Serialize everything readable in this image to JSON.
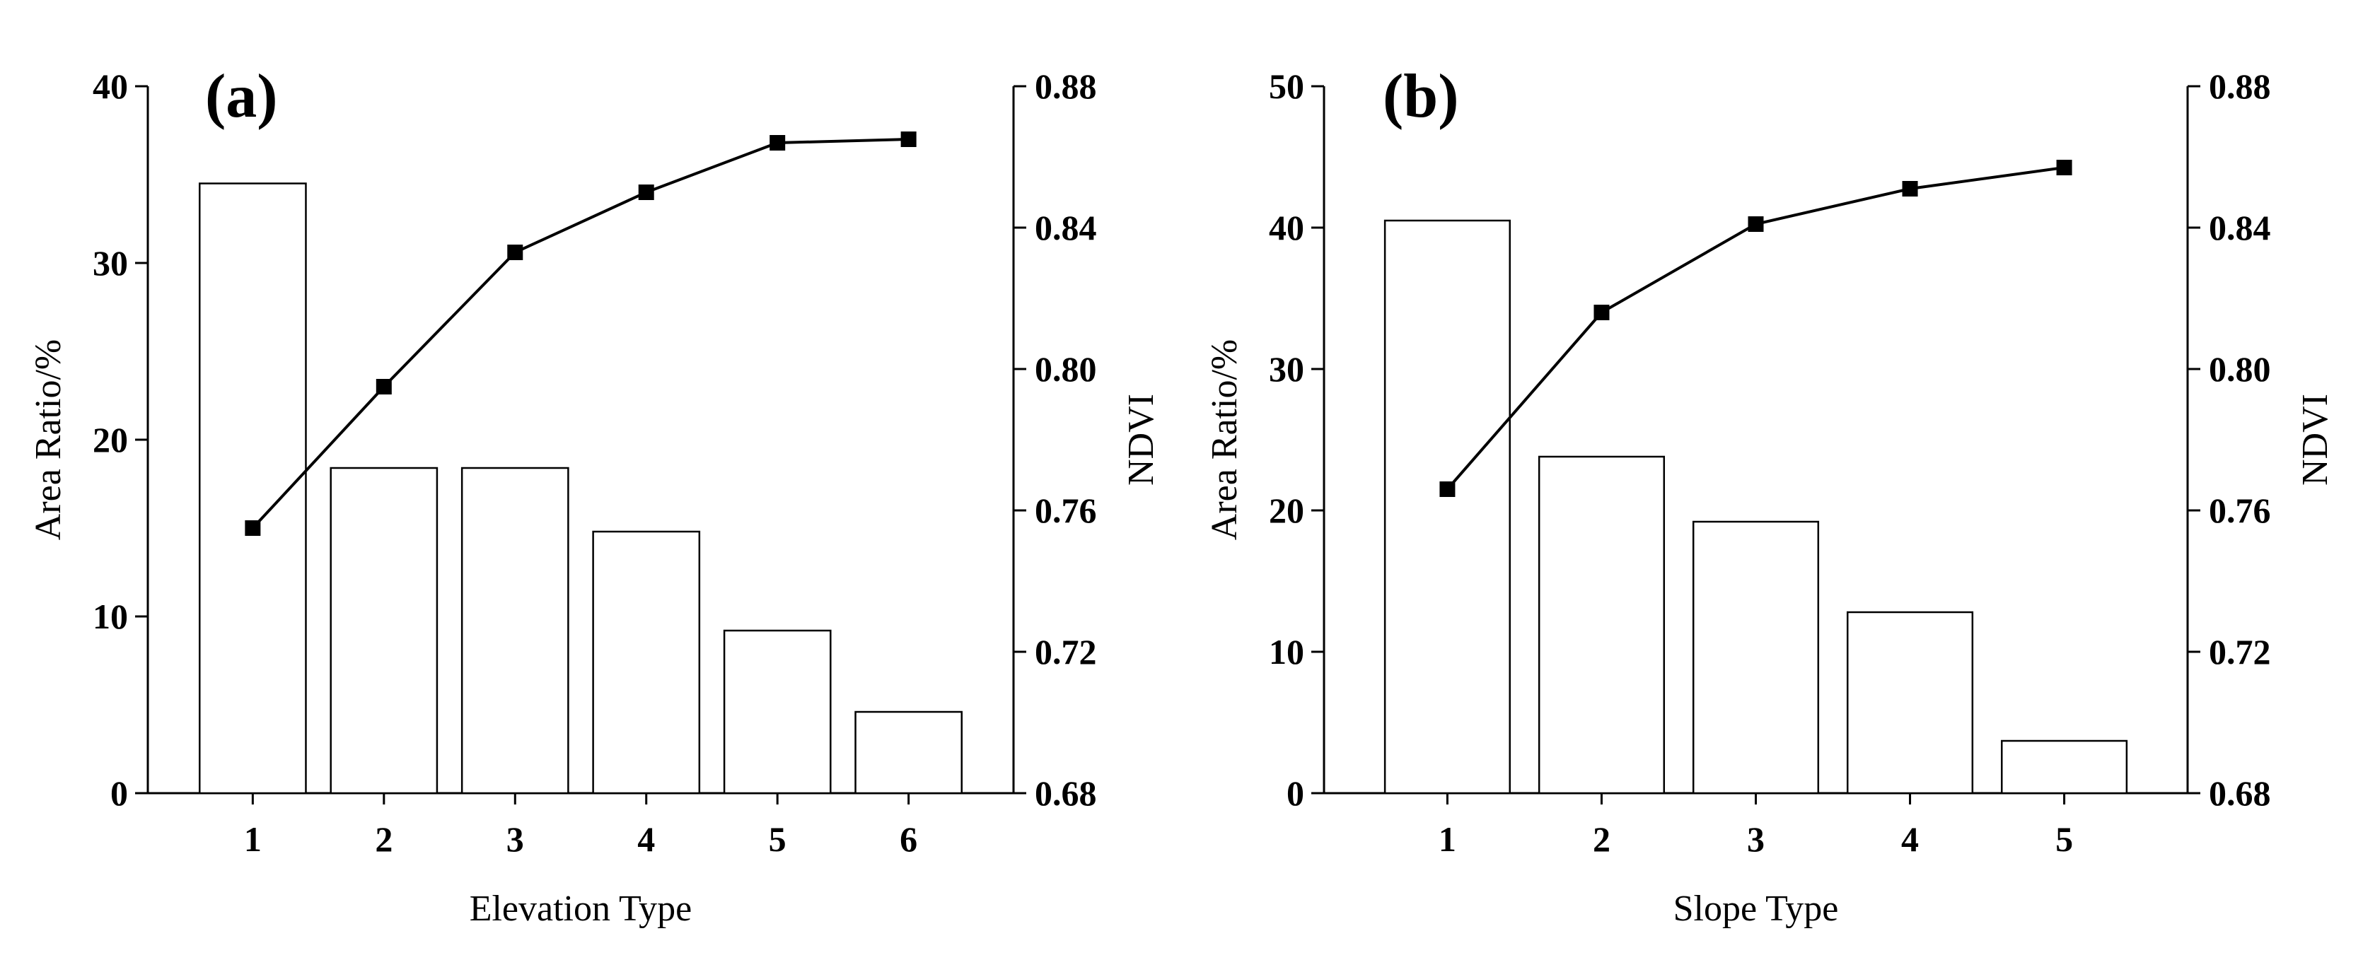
{
  "chart_data": [
    {
      "panel_label": "(a)",
      "type": "bar+line",
      "xlabel": "Elevation Type",
      "ylabel": "Area Ratio/%",
      "y2label": "NDVI",
      "categories": [
        "1",
        "2",
        "3",
        "4",
        "5",
        "6"
      ],
      "ylim": [
        0,
        40
      ],
      "yticks": [
        "0",
        "10",
        "20",
        "30",
        "40"
      ],
      "y2lim": [
        0.68,
        0.88
      ],
      "y2ticks": [
        "0.68",
        "0.72",
        "0.76",
        "0.80",
        "0.84",
        "0.88"
      ],
      "series": [
        {
          "name": "Area Ratio",
          "type": "bar",
          "axis": "left",
          "values": [
            34.5,
            18.4,
            18.4,
            14.8,
            9.2,
            4.6
          ]
        },
        {
          "name": "NDVI",
          "type": "line",
          "axis": "right",
          "values": [
            0.755,
            0.795,
            0.833,
            0.85,
            0.864,
            0.865
          ]
        }
      ]
    },
    {
      "panel_label": "(b)",
      "type": "bar+line",
      "xlabel": "Slope Type",
      "ylabel": "Area Ratio/%",
      "y2label": "NDVI",
      "categories": [
        "1",
        "2",
        "3",
        "4",
        "5"
      ],
      "ylim": [
        0,
        50
      ],
      "yticks": [
        "0",
        "10",
        "20",
        "30",
        "40",
        "50"
      ],
      "y2lim": [
        0.68,
        0.88
      ],
      "y2ticks": [
        "0.68",
        "0.72",
        "0.76",
        "0.80",
        "0.84",
        "0.88"
      ],
      "series": [
        {
          "name": "Area Ratio",
          "type": "bar",
          "axis": "left",
          "values": [
            40.5,
            23.8,
            19.2,
            12.8,
            3.7
          ]
        },
        {
          "name": "NDVI",
          "type": "line",
          "axis": "right",
          "values": [
            0.766,
            0.816,
            0.841,
            0.851,
            0.857
          ]
        }
      ]
    }
  ]
}
